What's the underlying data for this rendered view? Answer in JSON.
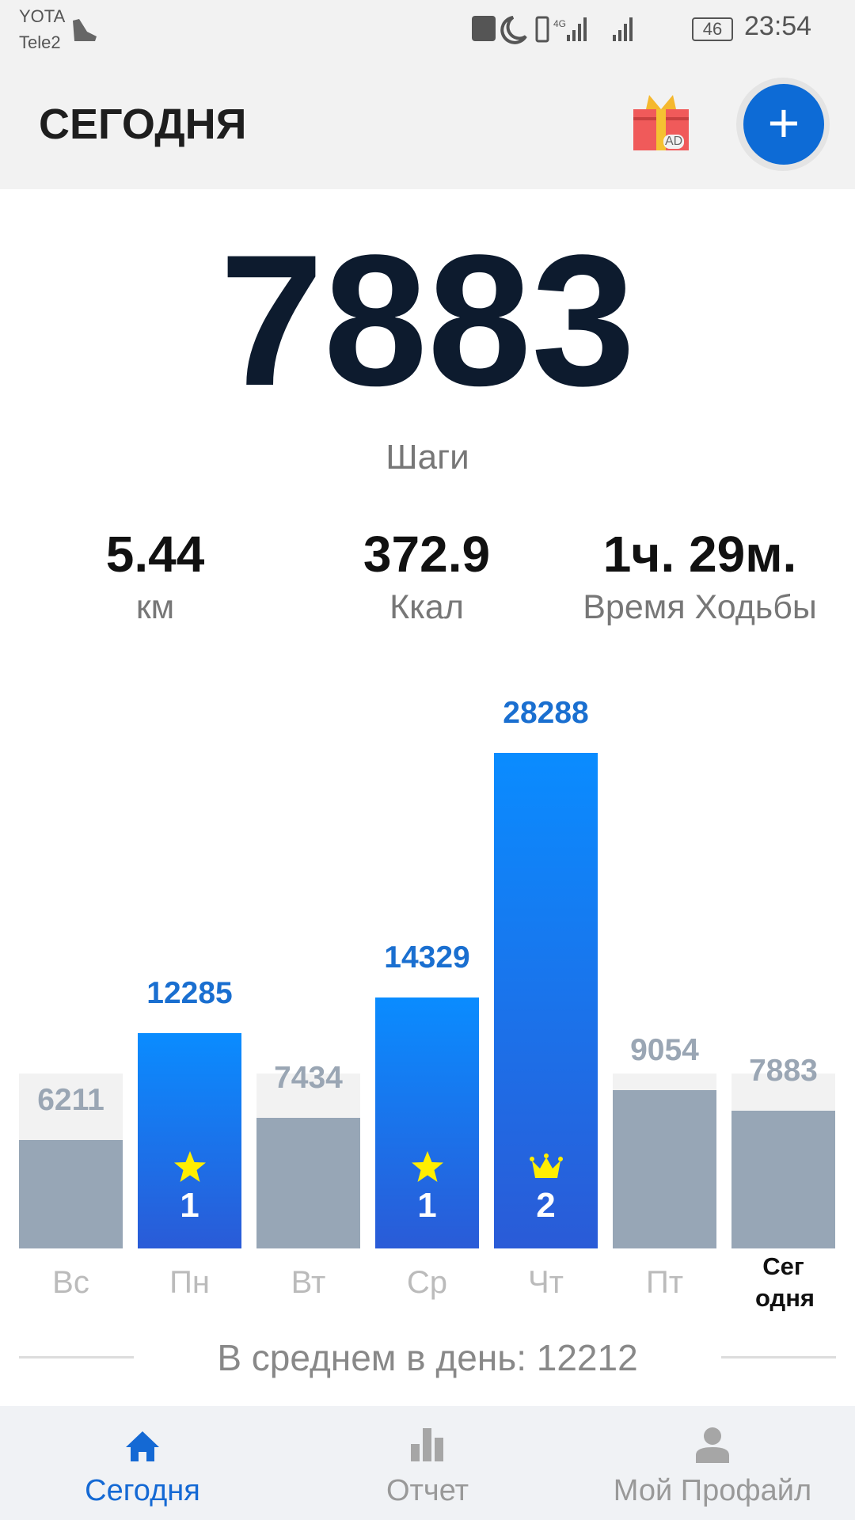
{
  "status_bar": {
    "carrier1": "YOTA",
    "carrier2": "Tele2",
    "battery": "46",
    "time": "23:54"
  },
  "header": {
    "title": "СЕГОДНЯ",
    "gift_badge": "AD",
    "add_label": "+"
  },
  "today": {
    "steps": "7883",
    "steps_label": "Шаги",
    "stats": [
      {
        "value": "5.44",
        "label": "км"
      },
      {
        "value": "372.9",
        "label": "Ккал"
      },
      {
        "value": "1ч. 29м.",
        "label": "Время Ходьбы"
      }
    ]
  },
  "chart_data": {
    "type": "bar",
    "categories": [
      "Вс",
      "Пн",
      "Вт",
      "Ср",
      "Чт",
      "Пт",
      "Сег одня"
    ],
    "values": [
      6211,
      12285,
      7434,
      14329,
      28288,
      9054,
      7883
    ],
    "labels": [
      "6211",
      "12285",
      "7434",
      "14329",
      "28288",
      "9054",
      "7883"
    ],
    "goal": 10000,
    "goal_reached": [
      false,
      true,
      false,
      true,
      true,
      false,
      false
    ],
    "badges": [
      null,
      {
        "icon": "star-icon",
        "count": "1"
      },
      null,
      {
        "icon": "star-icon",
        "count": "1"
      },
      {
        "icon": "crown-icon",
        "count": "2"
      },
      null,
      null
    ],
    "ylim": [
      0,
      28288
    ],
    "colors": {
      "reached": "#0a8cff",
      "reached_end": "#2a5bd7",
      "below": "#97a6b6",
      "goal_bg": "#f2f2f2",
      "label_reached": "#1a6fd0",
      "label_below": "#9aa6b4"
    }
  },
  "summary": {
    "average": "В среднем в день: 12212"
  },
  "nav": {
    "items": [
      {
        "label": "Сегодня",
        "icon": "home-icon",
        "active": true
      },
      {
        "label": "Отчет",
        "icon": "bar-chart-icon"
      },
      {
        "label": "Мой Профайл",
        "icon": "profile-icon"
      }
    ],
    "active_color": "#1469d4"
  }
}
